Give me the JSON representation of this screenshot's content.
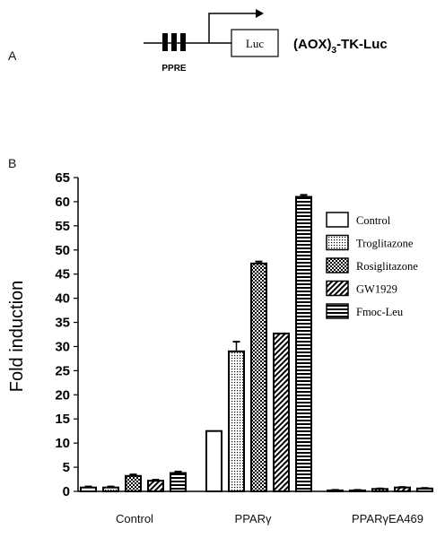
{
  "panel_a": {
    "letter": "A",
    "ppre_label": "PPRE",
    "luc_label": "Luc",
    "construct_prefix": "(AOX)",
    "construct_subscript": "3",
    "construct_suffix": "-TK-Luc"
  },
  "panel_b": {
    "letter": "B"
  },
  "chart_data": {
    "type": "bar",
    "title": "",
    "xlabel": "",
    "ylabel": "Fold induction",
    "ylim": [
      0,
      65
    ],
    "yticks": [
      0,
      5,
      10,
      15,
      20,
      25,
      30,
      35,
      40,
      45,
      50,
      55,
      60,
      65
    ],
    "grid": false,
    "legend_position": "right",
    "categories": [
      "Control",
      "PPARγ",
      "PPARγEA469"
    ],
    "series": [
      {
        "name": "Control",
        "pattern": "white",
        "values": [
          0.8,
          12.5,
          0.2
        ],
        "errors": [
          0.2,
          0,
          0.1
        ]
      },
      {
        "name": "Troglitazone",
        "pattern": "dots",
        "values": [
          0.8,
          29.0,
          0.2
        ],
        "errors": [
          0.2,
          2.0,
          0.1
        ]
      },
      {
        "name": "Rosiglitazone",
        "pattern": "checker",
        "values": [
          3.2,
          47.2,
          0.5
        ],
        "errors": [
          0.3,
          0.4,
          0.1
        ]
      },
      {
        "name": "GW1929",
        "pattern": "diagonal",
        "values": [
          2.2,
          32.7,
          0.8
        ],
        "errors": [
          0.2,
          0,
          0.1
        ]
      },
      {
        "name": "Fmoc-Leu",
        "pattern": "horizontal",
        "values": [
          3.8,
          61.0,
          0.6
        ],
        "errors": [
          0.3,
          0.4,
          0.1
        ]
      }
    ]
  }
}
